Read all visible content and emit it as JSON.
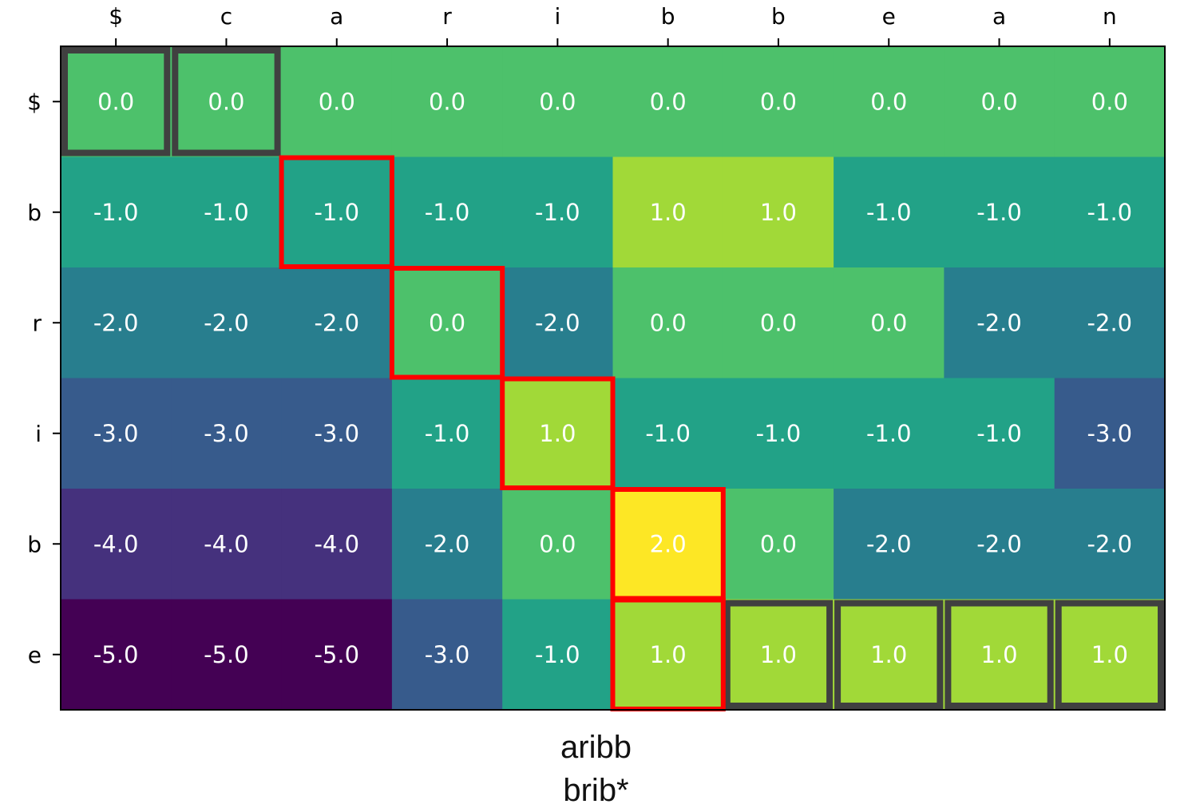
{
  "chart_data": {
    "type": "heatmap",
    "title": "",
    "xlabel": "",
    "ylabel": "",
    "x_labels": [
      "$",
      "c",
      "a",
      "r",
      "i",
      "b",
      "b",
      "e",
      "a",
      "n"
    ],
    "y_labels": [
      "$",
      "b",
      "r",
      "i",
      "b",
      "e"
    ],
    "values": [
      [
        0.0,
        0.0,
        0.0,
        0.0,
        0.0,
        0.0,
        0.0,
        0.0,
        0.0,
        0.0
      ],
      [
        -1.0,
        -1.0,
        -1.0,
        -1.0,
        -1.0,
        1.0,
        1.0,
        -1.0,
        -1.0,
        -1.0
      ],
      [
        -2.0,
        -2.0,
        -2.0,
        0.0,
        -2.0,
        0.0,
        0.0,
        0.0,
        -2.0,
        -2.0
      ],
      [
        -3.0,
        -3.0,
        -3.0,
        -1.0,
        1.0,
        -1.0,
        -1.0,
        -1.0,
        -1.0,
        -3.0
      ],
      [
        -4.0,
        -4.0,
        -4.0,
        -2.0,
        0.0,
        2.0,
        0.0,
        -2.0,
        -2.0,
        -2.0
      ],
      [
        -5.0,
        -5.0,
        -5.0,
        -3.0,
        -1.0,
        1.0,
        1.0,
        1.0,
        1.0,
        1.0
      ]
    ],
    "value_format": "one_decimal",
    "colormap": "viridis",
    "value_range": [
      -5,
      2
    ],
    "highlight_path": [
      [
        1,
        2
      ],
      [
        2,
        3
      ],
      [
        3,
        4
      ],
      [
        4,
        5
      ],
      [
        5,
        5
      ]
    ],
    "highlight_path_color": "#ff0000",
    "boundary_cells": [
      [
        0,
        0
      ],
      [
        0,
        1
      ],
      [
        5,
        6
      ],
      [
        5,
        7
      ],
      [
        5,
        8
      ],
      [
        5,
        9
      ]
    ],
    "boundary_color": "#404040",
    "cell_text_color": "#ffffff"
  },
  "caption": {
    "line1": "aribb",
    "line2": "brib*"
  }
}
